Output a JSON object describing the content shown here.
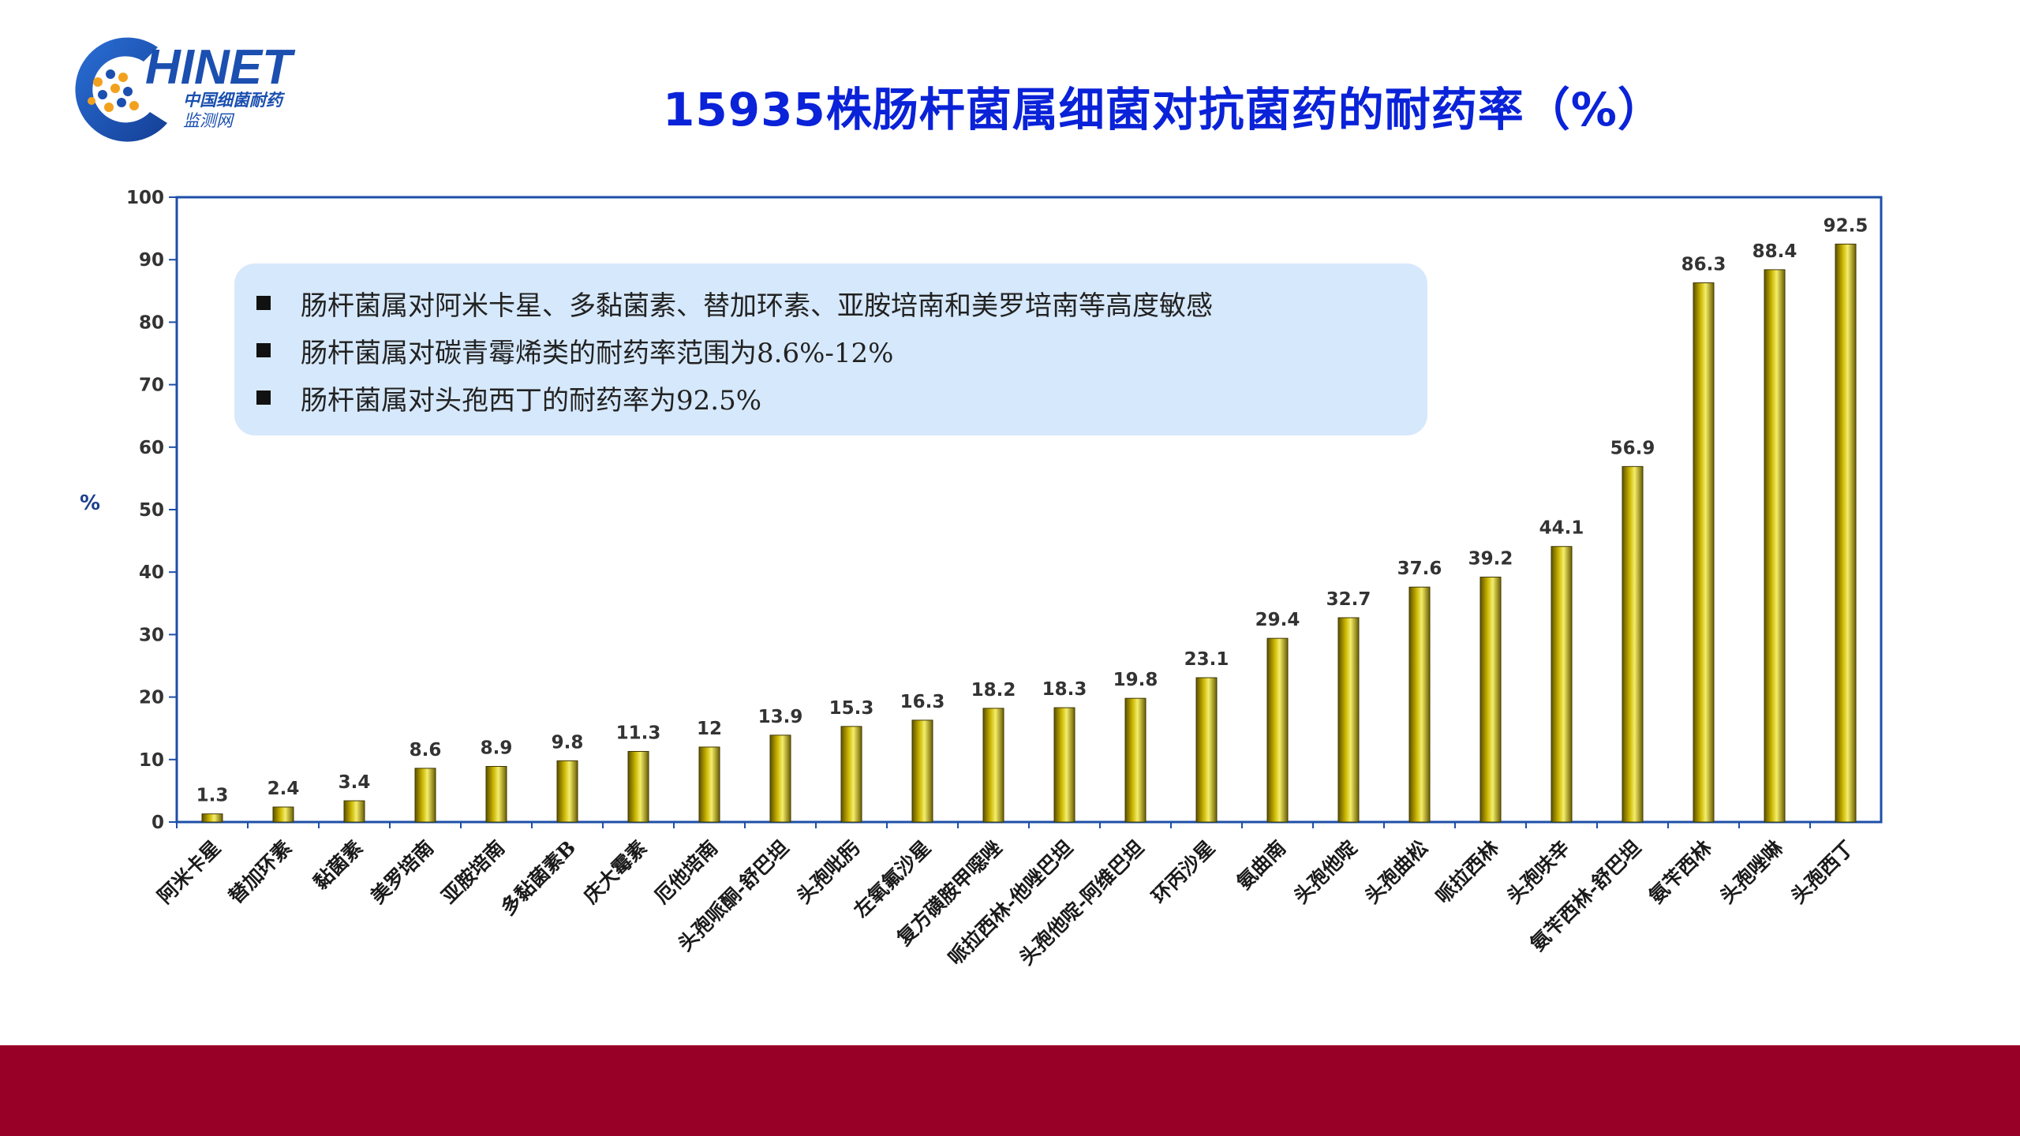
{
  "header": {
    "title": "15935株肠杆菌属细菌对抗菌药的耐药率（%）",
    "logo": {
      "name": "HINET",
      "subtitle_line1": "中国细菌耐药",
      "subtitle_line2": "监测网",
      "accent_color": "#1b4fb0",
      "dot_color": "#f2a11f"
    }
  },
  "notes": [
    "肠杆菌属对阿米卡星、多黏菌素、替加环素、亚胺培南和美罗培南等高度敏感",
    "肠杆菌属对碳青霉烯类的耐药率范围为8.6%-12%",
    "肠杆菌属对头孢西丁的耐药率为92.5%"
  ],
  "colors": {
    "title": "#0a22d8",
    "axis": "#1d4fa8",
    "bar_light": "#f5ee6a",
    "bar_mid": "#c9b400",
    "bar_dark": "#5c5000",
    "notes_bg": "#d6e8fb",
    "footer": "#980028"
  },
  "chart_data": {
    "type": "bar",
    "title": "15935株肠杆菌属细菌对抗菌药的耐药率（%）",
    "xlabel": "",
    "ylabel": "%",
    "ylim": [
      0,
      100
    ],
    "yticks": [
      0,
      10,
      20,
      30,
      40,
      50,
      60,
      70,
      80,
      90,
      100
    ],
    "grid": false,
    "legend": "none",
    "categories": [
      "阿米卡星",
      "替加环素",
      "黏菌素",
      "美罗培南",
      "亚胺培南",
      "多黏菌素B",
      "庆大霉素",
      "厄他培南",
      "头孢哌酮-舒巴坦",
      "头孢吡肟",
      "左氧氟沙星",
      "复方磺胺甲噁唑",
      "哌拉西林-他唑巴坦",
      "头孢他啶-阿维巴坦",
      "环丙沙星",
      "氨曲南",
      "头孢他啶",
      "头孢曲松",
      "哌拉西林",
      "头孢呋辛",
      "氨苄西林-舒巴坦",
      "氨苄西林",
      "头孢唑啉",
      "头孢西丁"
    ],
    "values": [
      1.3,
      2.4,
      3.4,
      8.6,
      8.9,
      9.8,
      11.3,
      12,
      13.9,
      15.3,
      16.3,
      18.2,
      18.3,
      19.8,
      23.1,
      29.4,
      32.7,
      37.6,
      39.2,
      44.1,
      56.9,
      86.3,
      88.4,
      92.5
    ],
    "value_labels": [
      "1.3",
      "2.4",
      "3.4",
      "8.6",
      "8.9",
      "9.8",
      "11.3",
      "12",
      "13.9",
      "15.3",
      "16.3",
      "18.2",
      "18.3",
      "19.8",
      "23.1",
      "29.4",
      "32.7",
      "37.6",
      "39.2",
      "44.1",
      "56.9",
      "86.3",
      "88.4",
      "92.5"
    ]
  }
}
